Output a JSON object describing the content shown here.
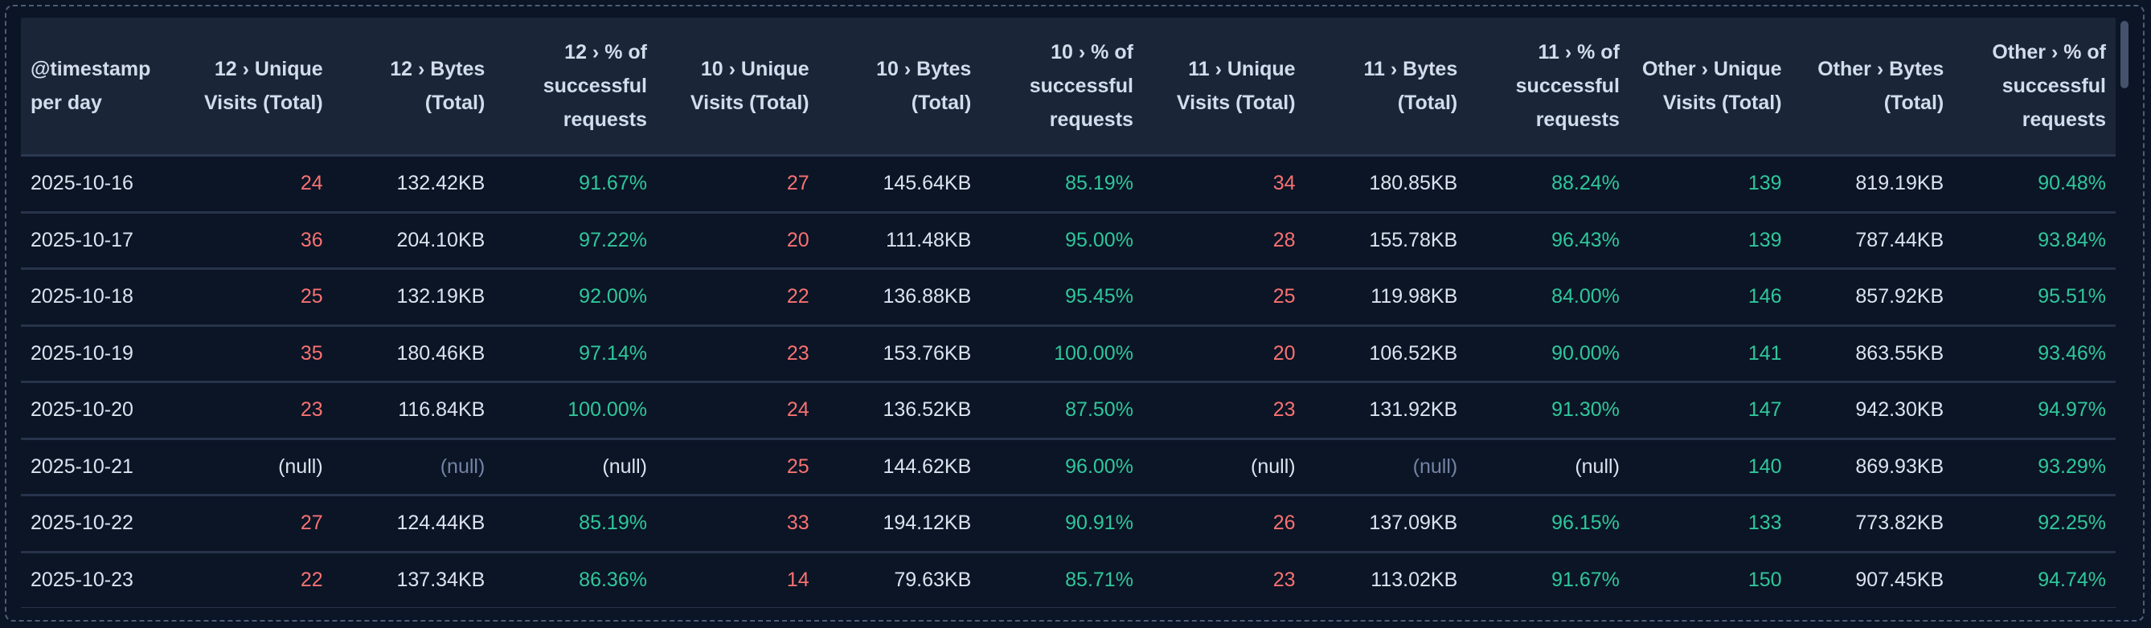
{
  "columns": [
    "@timestamp per day",
    "12 › Unique Visits (Total)",
    "12 › Bytes (Total)",
    "12 › % of successful requests",
    "10 › Unique Visits (Total)",
    "10 › Bytes (Total)",
    "10 › % of successful requests",
    "11 › Unique Visits (Total)",
    "11 › Bytes (Total)",
    "11 › % of successful requests",
    "Other › Unique Visits (Total)",
    "Other › Bytes (Total)",
    "Other › % of successful requests"
  ],
  "colors": {
    "visits": "#f87171",
    "other_visits": "#2fc79a",
    "percent": "#2fc79a",
    "null_bytes": "#7384a5",
    "text": "#dbe3ee"
  },
  "rows": [
    [
      "2025-10-16",
      "24",
      "132.42KB",
      "91.67%",
      "27",
      "145.64KB",
      "85.19%",
      "34",
      "180.85KB",
      "88.24%",
      "139",
      "819.19KB",
      "90.48%"
    ],
    [
      "2025-10-17",
      "36",
      "204.10KB",
      "97.22%",
      "20",
      "111.48KB",
      "95.00%",
      "28",
      "155.78KB",
      "96.43%",
      "139",
      "787.44KB",
      "93.84%"
    ],
    [
      "2025-10-18",
      "25",
      "132.19KB",
      "92.00%",
      "22",
      "136.88KB",
      "95.45%",
      "25",
      "119.98KB",
      "84.00%",
      "146",
      "857.92KB",
      "95.51%"
    ],
    [
      "2025-10-19",
      "35",
      "180.46KB",
      "97.14%",
      "23",
      "153.76KB",
      "100.00%",
      "20",
      "106.52KB",
      "90.00%",
      "141",
      "863.55KB",
      "93.46%"
    ],
    [
      "2025-10-20",
      "23",
      "116.84KB",
      "100.00%",
      "24",
      "136.52KB",
      "87.50%",
      "23",
      "131.92KB",
      "91.30%",
      "147",
      "942.30KB",
      "94.97%"
    ],
    [
      "2025-10-21",
      "(null)",
      "(null)",
      "(null)",
      "25",
      "144.62KB",
      "96.00%",
      "(null)",
      "(null)",
      "(null)",
      "140",
      "869.93KB",
      "93.29%"
    ],
    [
      "2025-10-22",
      "27",
      "124.44KB",
      "85.19%",
      "33",
      "194.12KB",
      "90.91%",
      "26",
      "137.09KB",
      "96.15%",
      "133",
      "773.82KB",
      "92.25%"
    ],
    [
      "2025-10-23",
      "22",
      "137.34KB",
      "86.36%",
      "14",
      "79.63KB",
      "85.71%",
      "23",
      "113.02KB",
      "91.67%",
      "150",
      "907.45KB",
      "94.74%"
    ]
  ]
}
